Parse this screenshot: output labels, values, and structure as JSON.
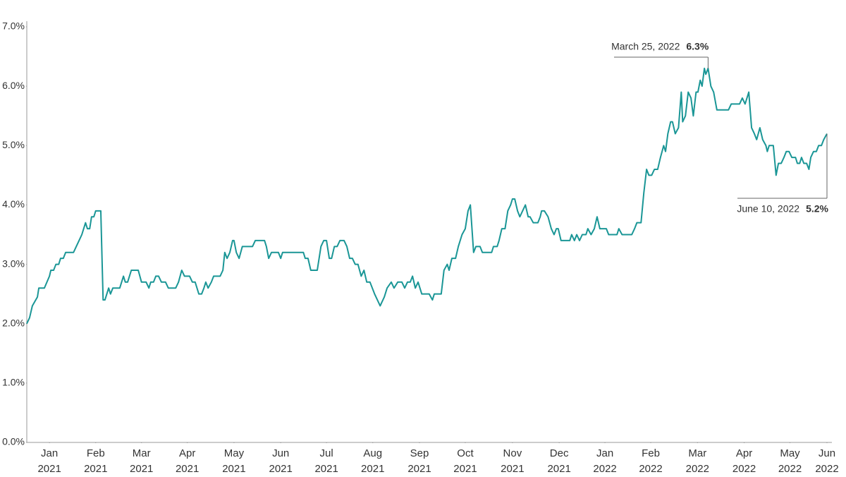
{
  "chart_data": {
    "type": "line",
    "color": "#1a9696",
    "xlim": [
      0,
      17.3
    ],
    "ylim": [
      0,
      7
    ],
    "grid": false,
    "yticks": [
      {
        "value": 0,
        "label": "0.0%"
      },
      {
        "value": 1,
        "label": "1.0%"
      },
      {
        "value": 2,
        "label": "2.0%"
      },
      {
        "value": 3,
        "label": "3.0%"
      },
      {
        "value": 4,
        "label": "4.0%"
      },
      {
        "value": 5,
        "label": "5.0%"
      },
      {
        "value": 6,
        "label": "6.0%"
      },
      {
        "value": 7,
        "label": "7.0%"
      }
    ],
    "xticks": [
      {
        "value": 0.49,
        "label": "Jan 2021"
      },
      {
        "value": 1.49,
        "label": "Feb 2021"
      },
      {
        "value": 2.48,
        "label": "Mar 2021"
      },
      {
        "value": 3.47,
        "label": "Apr 2021"
      },
      {
        "value": 4.48,
        "label": "May 2021"
      },
      {
        "value": 5.49,
        "label": "Jun 2021"
      },
      {
        "value": 6.48,
        "label": "Jul 2021"
      },
      {
        "value": 7.48,
        "label": "Aug 2021"
      },
      {
        "value": 8.49,
        "label": "Sep 2021"
      },
      {
        "value": 9.48,
        "label": "Oct 2021"
      },
      {
        "value": 10.5,
        "label": "Nov 2021"
      },
      {
        "value": 11.51,
        "label": "Dec 2021"
      },
      {
        "value": 12.5,
        "label": "Jan 2022"
      },
      {
        "value": 13.49,
        "label": "Feb 2022"
      },
      {
        "value": 14.5,
        "label": "Mar 2022"
      },
      {
        "value": 15.51,
        "label": "Apr 2022"
      },
      {
        "value": 16.5,
        "label": "May 2022"
      },
      {
        "value": 17.3,
        "label": "Jun 2022"
      }
    ],
    "x": [
      0,
      0.06,
      0.12,
      0.23,
      0.26,
      0.38,
      0.49,
      0.52,
      0.58,
      0.63,
      0.69,
      0.73,
      0.79,
      0.84,
      1.01,
      1.07,
      1.13,
      1.19,
      1.27,
      1.31,
      1.36,
      1.4,
      1.45,
      1.49,
      1.6,
      1.65,
      1.69,
      1.77,
      1.81,
      1.86,
      2.01,
      2.09,
      2.13,
      2.18,
      2.26,
      2.41,
      2.48,
      2.58,
      2.64,
      2.68,
      2.74,
      2.79,
      2.85,
      2.91,
      3.0,
      3.06,
      3.22,
      3.28,
      3.35,
      3.41,
      3.52,
      3.58,
      3.64,
      3.72,
      3.78,
      3.83,
      3.87,
      3.92,
      3.99,
      4.04,
      4.18,
      4.24,
      4.28,
      4.33,
      4.39,
      4.45,
      4.48,
      4.53,
      4.59,
      4.66,
      4.88,
      4.94,
      5.14,
      5.18,
      5.23,
      5.29,
      5.44,
      5.49,
      5.53,
      5.59,
      5.64,
      5.98,
      6.02,
      6.08,
      6.14,
      6.28,
      6.36,
      6.42,
      6.48,
      6.54,
      6.59,
      6.65,
      6.71,
      6.77,
      6.86,
      6.92,
      6.98,
      7.04,
      7.1,
      7.16,
      7.23,
      7.29,
      7.35,
      7.42,
      7.52,
      7.64,
      7.73,
      7.79,
      7.88,
      7.94,
      8.02,
      8.11,
      8.17,
      8.23,
      8.29,
      8.34,
      8.4,
      8.46,
      8.54,
      8.64,
      8.7,
      8.77,
      8.81,
      8.96,
      9.02,
      9.09,
      9.13,
      9.19,
      9.27,
      9.33,
      9.41,
      9.48,
      9.54,
      9.59,
      9.66,
      9.71,
      9.8,
      9.85,
      10.05,
      10.09,
      10.17,
      10.21,
      10.27,
      10.34,
      10.4,
      10.46,
      10.5,
      10.55,
      10.61,
      10.66,
      10.72,
      10.78,
      10.84,
      10.88,
      10.95,
      11.05,
      11.1,
      11.13,
      11.19,
      11.27,
      11.34,
      11.4,
      11.45,
      11.49,
      11.55,
      11.74,
      11.78,
      11.84,
      11.89,
      11.95,
      12.01,
      12.09,
      12.13,
      12.2,
      12.27,
      12.33,
      12.39,
      12.53,
      12.58,
      12.76,
      12.8,
      12.87,
      13.08,
      13.14,
      13.19,
      13.28,
      13.34,
      13.4,
      13.45,
      13.51,
      13.57,
      13.64,
      13.7,
      13.77,
      13.81,
      13.86,
      13.92,
      13.96,
      14.02,
      14.09,
      14.15,
      14.18,
      14.24,
      14.3,
      14.36,
      14.41,
      14.47,
      14.51,
      14.56,
      14.6,
      14.65,
      14.68,
      14.73,
      14.79,
      14.85,
      14.92,
      15.17,
      15.23,
      15.41,
      15.47,
      15.53,
      15.61,
      15.67,
      15.73,
      15.78,
      15.85,
      15.91,
      15.98,
      16.01,
      16.05,
      16.14,
      16.2,
      16.25,
      16.31,
      16.37,
      16.42,
      16.48,
      16.54,
      16.62,
      16.66,
      16.71,
      16.75,
      16.8,
      16.86,
      16.91,
      16.95,
      17.01,
      17.07,
      17.12,
      17.18,
      17.23,
      17.3
    ],
    "values": [
      2.0,
      2.1,
      2.3,
      2.45,
      2.6,
      2.6,
      2.8,
      2.9,
      2.9,
      3.0,
      3.0,
      3.1,
      3.1,
      3.2,
      3.2,
      3.3,
      3.4,
      3.5,
      3.7,
      3.6,
      3.6,
      3.8,
      3.8,
      3.9,
      3.9,
      2.4,
      2.4,
      2.6,
      2.5,
      2.6,
      2.6,
      2.8,
      2.7,
      2.7,
      2.9,
      2.9,
      2.7,
      2.7,
      2.6,
      2.7,
      2.7,
      2.8,
      2.8,
      2.7,
      2.7,
      2.6,
      2.6,
      2.7,
      2.9,
      2.8,
      2.8,
      2.7,
      2.7,
      2.5,
      2.5,
      2.6,
      2.7,
      2.6,
      2.7,
      2.8,
      2.8,
      2.9,
      3.2,
      3.1,
      3.2,
      3.4,
      3.4,
      3.2,
      3.1,
      3.3,
      3.3,
      3.4,
      3.4,
      3.3,
      3.1,
      3.2,
      3.2,
      3.1,
      3.2,
      3.2,
      3.2,
      3.2,
      3.1,
      3.1,
      2.9,
      2.9,
      3.3,
      3.4,
      3.4,
      3.1,
      3.1,
      3.3,
      3.3,
      3.4,
      3.4,
      3.3,
      3.1,
      3.1,
      3.0,
      3.0,
      2.8,
      2.9,
      2.7,
      2.7,
      2.5,
      2.3,
      2.45,
      2.6,
      2.7,
      2.6,
      2.7,
      2.7,
      2.6,
      2.7,
      2.7,
      2.8,
      2.6,
      2.7,
      2.5,
      2.5,
      2.5,
      2.4,
      2.5,
      2.5,
      2.9,
      3.0,
      2.9,
      3.1,
      3.1,
      3.3,
      3.5,
      3.6,
      3.9,
      4.0,
      3.2,
      3.3,
      3.3,
      3.2,
      3.2,
      3.3,
      3.3,
      3.4,
      3.6,
      3.6,
      3.9,
      4.0,
      4.1,
      4.1,
      3.9,
      3.8,
      3.9,
      4.0,
      3.8,
      3.8,
      3.7,
      3.7,
      3.8,
      3.9,
      3.9,
      3.8,
      3.6,
      3.5,
      3.6,
      3.6,
      3.4,
      3.4,
      3.5,
      3.4,
      3.5,
      3.4,
      3.5,
      3.5,
      3.6,
      3.5,
      3.6,
      3.8,
      3.6,
      3.6,
      3.5,
      3.5,
      3.6,
      3.5,
      3.5,
      3.6,
      3.7,
      3.7,
      4.2,
      4.6,
      4.5,
      4.5,
      4.6,
      4.6,
      4.8,
      5.0,
      4.9,
      5.2,
      5.4,
      5.4,
      5.2,
      5.3,
      5.9,
      5.4,
      5.5,
      5.9,
      5.8,
      5.5,
      5.9,
      5.9,
      6.1,
      6.0,
      6.3,
      6.2,
      6.3,
      6.0,
      5.9,
      5.6,
      5.6,
      5.7,
      5.7,
      5.8,
      5.7,
      5.9,
      5.3,
      5.2,
      5.1,
      5.3,
      5.1,
      5.0,
      4.9,
      5.0,
      5.0,
      4.5,
      4.7,
      4.7,
      4.8,
      4.9,
      4.9,
      4.8,
      4.8,
      4.7,
      4.7,
      4.8,
      4.7,
      4.7,
      4.6,
      4.8,
      4.9,
      4.9,
      5.0,
      5.0,
      5.1,
      5.2
    ],
    "annotations": [
      {
        "date": "March 25, 2022",
        "x": 14.73,
        "value": 6.3,
        "value_label": "6.3%"
      },
      {
        "date": "June 10, 2022",
        "x": 17.3,
        "value": 5.2,
        "value_label": "5.2%"
      }
    ]
  }
}
